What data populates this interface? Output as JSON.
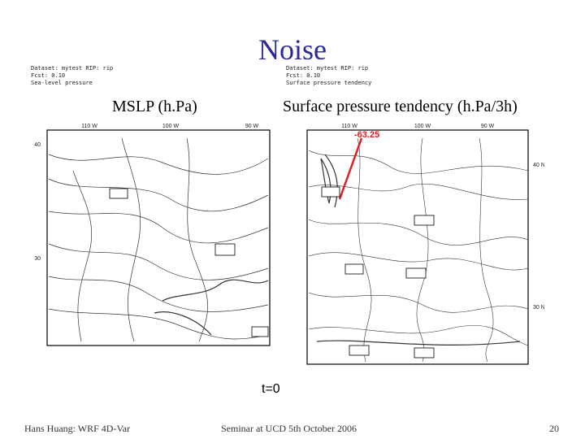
{
  "slide": {
    "title": "Noise",
    "labels": {
      "left": "MSLP (h.Pa)",
      "right": "Surface pressure tendency (h.Pa/3h)"
    },
    "annotation": "-63.25",
    "time": "t=0",
    "maps": [
      {
        "header": [
          "Dataset: mytest  RIP: rip",
          "Fcst: 0.10",
          "Sea-level pressure"
        ],
        "lon_labels": [
          "110 W",
          "100 W",
          "90 W"
        ],
        "lat_labels": [
          "40",
          "30"
        ]
      },
      {
        "header": [
          "Dataset: mytest  RIP: rip",
          "Fcst: 0.10",
          "Surface pressure tendency"
        ],
        "lon_labels": [
          "110 W",
          "100 W",
          "90 W"
        ],
        "lat_labels": [
          "40 N",
          "30 N"
        ]
      }
    ],
    "footer": {
      "author": "Hans Huang: WRF 4D-Var",
      "event": "Seminar at UCD  5th October 2006",
      "page": "20"
    }
  }
}
